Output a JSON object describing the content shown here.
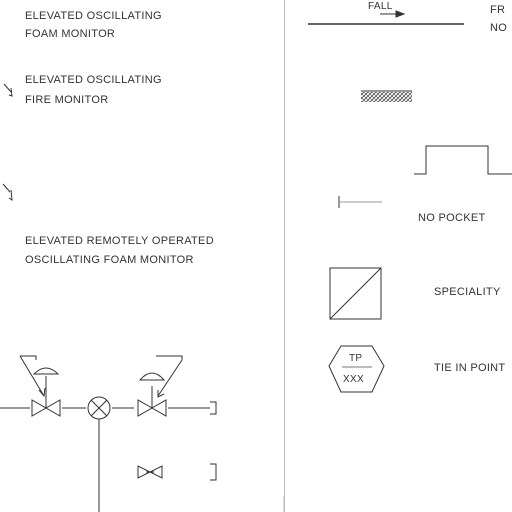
{
  "legend_left": {
    "foam_monitor": {
      "line1": "ELEVATED OSCILLATING",
      "line2": "FOAM MONITOR"
    },
    "fire_monitor": {
      "line1": "ELEVATED OSCILLATING",
      "line2": "FIRE MONITOR"
    },
    "remote_foam_monitor": {
      "line1": "ELEVATED REMOTELY OPERATED",
      "line2": "OSCILLATING FOAM MONITOR"
    }
  },
  "legend_right": {
    "fall_label": "FALL",
    "fall_note_line1": "FR",
    "fall_note_line2": "NO",
    "no_pocket_label": "NO POCKET",
    "speciality_label": "SPECIALITY",
    "tie_in_box_line1": "TP",
    "tie_in_box_line2": "XXX",
    "tie_in_label": "TIE IN POINT"
  }
}
